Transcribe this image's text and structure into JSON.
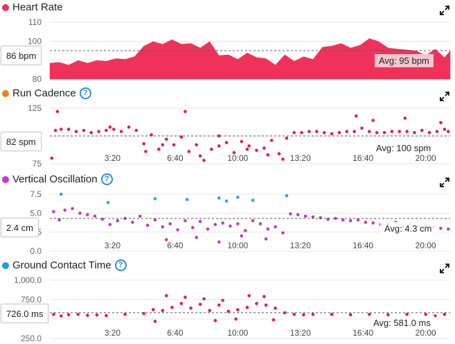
{
  "x_axis": {
    "ticks": [
      "3:20",
      "6:40",
      "10:00",
      "13:20",
      "16:40",
      "20:00"
    ]
  },
  "colors": {
    "heart_rate": "#f0325a",
    "run_cadence_title": "#e8821e",
    "run_cadence": "#ea1a48",
    "vertical_oscillation": "#c13bc1",
    "ground_contact": "#ea1a48",
    "ground_contact_title": "#1a9ee0",
    "outlier": "#2aa3e8"
  },
  "panels": [
    {
      "title": "Heart Rate",
      "help": "",
      "current": "86 bpm",
      "avg": "Avg: 95 bpm",
      "yticks": [
        "110",
        "100",
        "90",
        "80"
      ]
    },
    {
      "title": "Run Cadence",
      "help": "?",
      "current": "82 spm",
      "avg": "Avg: 100 spm",
      "yticks": [
        "125",
        "100",
        "75"
      ]
    },
    {
      "title": "Vertical Oscillation",
      "help": "?",
      "current": "2.4 cm",
      "avg": "Avg: 4.3 cm",
      "yticks": [
        "7.5",
        "5.0",
        "2.5",
        "0.0"
      ]
    },
    {
      "title": "Ground Contact Time",
      "help": "?",
      "current": "726.0 ms",
      "avg": "Avg: 581.0 ms",
      "yticks": [
        "1,000.0",
        "750.0",
        "500.0",
        "250.0"
      ]
    }
  ],
  "chart_data": [
    {
      "type": "area",
      "title": "Heart Rate",
      "ylim": [
        80,
        110
      ],
      "xlim": [
        0,
        21.3
      ],
      "x_unit": "minutes",
      "average": 95,
      "x": [
        0,
        0.5,
        1,
        1.5,
        2,
        2.5,
        3,
        3.5,
        4,
        4.5,
        5,
        5.5,
        6,
        6.5,
        7,
        7.5,
        8,
        8.5,
        9,
        9.5,
        10,
        10.5,
        11,
        11.5,
        12,
        12.5,
        13,
        13.5,
        14,
        14.5,
        15,
        15.5,
        16,
        16.5,
        17,
        17.5,
        18,
        18.5,
        19,
        19.5,
        20,
        20.5,
        21,
        21.3
      ],
      "values": [
        89,
        88,
        88,
        89,
        89,
        89,
        90,
        90,
        91,
        91,
        98,
        99,
        99,
        100,
        99,
        98,
        97,
        99,
        93,
        92,
        91,
        93,
        92,
        90,
        88,
        92,
        90,
        91,
        91,
        96,
        98,
        98,
        97,
        97,
        102,
        99,
        97,
        95,
        96,
        94,
        93,
        95,
        92,
        94
      ]
    },
    {
      "type": "scatter",
      "title": "Run Cadence",
      "ylim": [
        75,
        125
      ],
      "average": 100,
      "x": [
        0.1,
        0.3,
        0.6,
        1,
        1.4,
        1.8,
        2.2,
        2.6,
        3,
        3.4,
        3.8,
        4.2,
        4.6,
        5,
        5.4,
        5.8,
        6.2,
        6.6,
        7,
        7.4,
        7.8,
        8.2,
        8.6,
        9,
        9.4,
        9.8,
        10.2,
        10.6,
        11,
        11.4,
        11.8,
        12.2,
        12.6,
        13,
        13.4,
        13.8,
        14.2,
        14.6,
        15,
        15.4,
        15.8,
        16.2,
        16.6,
        17,
        17.4,
        17.8,
        18.2,
        18.6,
        19,
        19.4,
        19.8,
        20.2,
        20.6,
        21,
        21.2,
        0.4,
        3.2,
        7.2,
        5.1,
        6.0,
        8.0,
        9.0,
        10.5,
        11.6,
        12.4,
        16.3,
        17.2,
        18.9,
        20.8
      ],
      "values": [
        80,
        105,
        106,
        106,
        104,
        105,
        103,
        104,
        105,
        106,
        104,
        108,
        105,
        93,
        101,
        88,
        97,
        92,
        99,
        86,
        92,
        78,
        88,
        100,
        94,
        85,
        95,
        91,
        87,
        89,
        96,
        84,
        98,
        103,
        103,
        104,
        104,
        103,
        102,
        103,
        104,
        104,
        107,
        104,
        103,
        103,
        104,
        104,
        104,
        103,
        105,
        103,
        104,
        106,
        104,
        122,
        108,
        122,
        86,
        92,
        82,
        91,
        88,
        83,
        79,
        118,
        114,
        116,
        112
      ]
    },
    {
      "type": "scatter",
      "title": "Vertical Oscillation",
      "ylim": [
        0,
        7.5
      ],
      "average": 4.3,
      "x": [
        0.2,
        0.5,
        0.8,
        1.2,
        1.6,
        2,
        2.4,
        2.8,
        3.2,
        3.6,
        4,
        4.4,
        4.8,
        5.2,
        5.6,
        6,
        6.4,
        6.8,
        7.2,
        7.6,
        8,
        8.4,
        8.8,
        9.2,
        9.6,
        10,
        10.4,
        10.8,
        11.2,
        11.6,
        12,
        12.4,
        12.8,
        13.2,
        13.6,
        14,
        14.4,
        14.8,
        15.2,
        15.6,
        16,
        16.4,
        16.8,
        17.2,
        17.6,
        18,
        18.4,
        18.8,
        19.2,
        19.6,
        20,
        20.4,
        20.8,
        21.2,
        6.2,
        7.8,
        9.0,
        10.2,
        11.5
      ],
      "values": [
        5.2,
        4.1,
        5.4,
        5.6,
        5.0,
        4.8,
        4.6,
        4.2,
        3.5,
        4.0,
        4.3,
        3.8,
        4.6,
        3.4,
        4.1,
        3.2,
        3.6,
        2.8,
        4.0,
        3.1,
        3.9,
        2.9,
        3.5,
        3.7,
        3.3,
        3.6,
        2.7,
        4.0,
        3.6,
        2.9,
        3.2,
        2.4,
        4.9,
        4.8,
        4.6,
        4.5,
        4.4,
        4.2,
        4.3,
        4.1,
        4.0,
        4.1,
        3.8,
        3.7,
        3.5,
        3.6,
        3.8,
        3.2,
        3.5,
        3.3,
        3.4,
        3.2,
        3.0,
        2.9,
        1.5,
        1.8,
        1.2,
        2.0,
        1.6
      ],
      "outliers": {
        "color": "#2aa3e8",
        "x": [
          0.6,
          3.1,
          5.6,
          7.3,
          9.0,
          9.4,
          10.0,
          10.8,
          12.6
        ],
        "values": [
          7.5,
          6.4,
          6.9,
          6.8,
          7.0,
          6.6,
          7.1,
          6.7,
          7.3
        ]
      }
    },
    {
      "type": "scatter",
      "title": "Ground Contact Time",
      "ylim": [
        250,
        1000
      ],
      "average": 581,
      "x": [
        0.2,
        0.6,
        1,
        1.5,
        2,
        2.5,
        3,
        4,
        5,
        5.5,
        6,
        6.5,
        7,
        7.5,
        8,
        8.5,
        9,
        9.5,
        10,
        10.5,
        11,
        11.5,
        12,
        12.5,
        13,
        13.5,
        14,
        15,
        16,
        17,
        18,
        19,
        20,
        20.5,
        21,
        6.2,
        7.2,
        8.2,
        9.2,
        10.6,
        11.4,
        5.6,
        8.8,
        9.9,
        11.9
      ],
      "values": [
        560,
        540,
        555,
        560,
        548,
        552,
        545,
        560,
        570,
        620,
        610,
        650,
        700,
        640,
        690,
        610,
        680,
        600,
        620,
        650,
        700,
        680,
        640,
        580,
        560,
        555,
        560,
        560,
        555,
        560,
        556,
        560,
        560,
        540,
        560,
        800,
        780,
        760,
        740,
        800,
        790,
        470,
        480,
        500,
        490
      ]
    }
  ]
}
